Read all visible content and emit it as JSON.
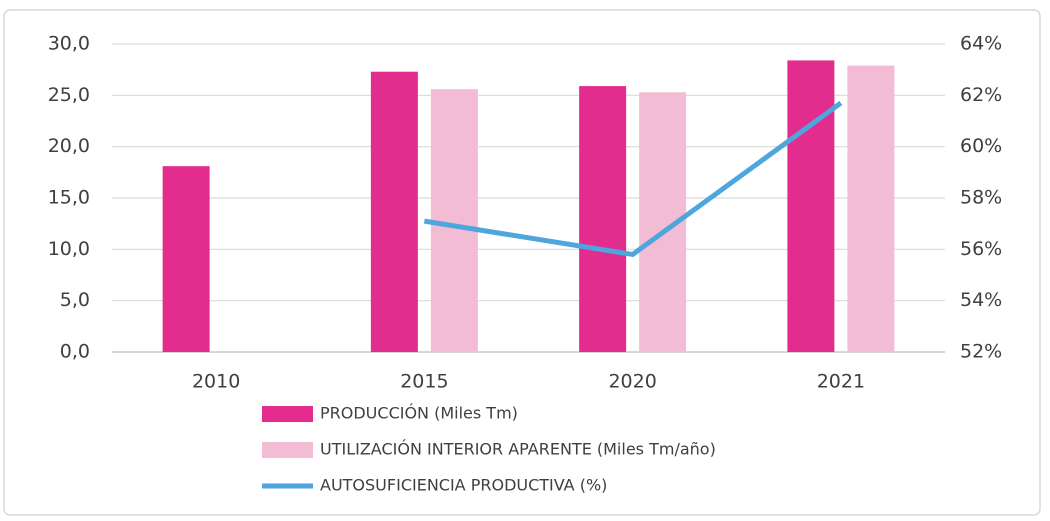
{
  "chart_data": {
    "type": "bar_line",
    "categories": [
      "2010",
      "2015",
      "2020",
      "2021"
    ],
    "series": [
      {
        "name": "PRODUCCIÓN (Miles Tm)",
        "color": "#e22d8e",
        "type": "bar",
        "values": [
          18.1,
          27.3,
          25.9,
          28.4
        ]
      },
      {
        "name": "UTILIZACIÓN INTERIOR APARENTE (Miles Tm/año)",
        "color": "#f2bdd4",
        "type": "bar",
        "values": [
          null,
          25.6,
          25.3,
          27.9
        ]
      },
      {
        "name": "AUTOSUFICIENCIA PRODUCTIVA (%)",
        "color": "#4ea6dc",
        "type": "line",
        "axis": "y2",
        "values": [
          null,
          57.1,
          55.8,
          61.7
        ]
      }
    ],
    "ylim": [
      0,
      30
    ],
    "yticks": [
      {
        "value": 0,
        "label": "0,0"
      },
      {
        "value": 5,
        "label": "5,0"
      },
      {
        "value": 10,
        "label": "10,0"
      },
      {
        "value": 15,
        "label": "15,0"
      },
      {
        "value": 20,
        "label": "20,0"
      },
      {
        "value": 25,
        "label": "25,0"
      },
      {
        "value": 30,
        "label": "30,0"
      }
    ],
    "y2lim": [
      52,
      64
    ],
    "y2ticks": [
      {
        "value": 52,
        "label": "52%"
      },
      {
        "value": 54,
        "label": "54%"
      },
      {
        "value": 56,
        "label": "56%"
      },
      {
        "value": 58,
        "label": "58%"
      },
      {
        "value": 60,
        "label": "60%"
      },
      {
        "value": 62,
        "label": "62%"
      },
      {
        "value": 64,
        "label": "64%"
      }
    ],
    "grid": true
  }
}
